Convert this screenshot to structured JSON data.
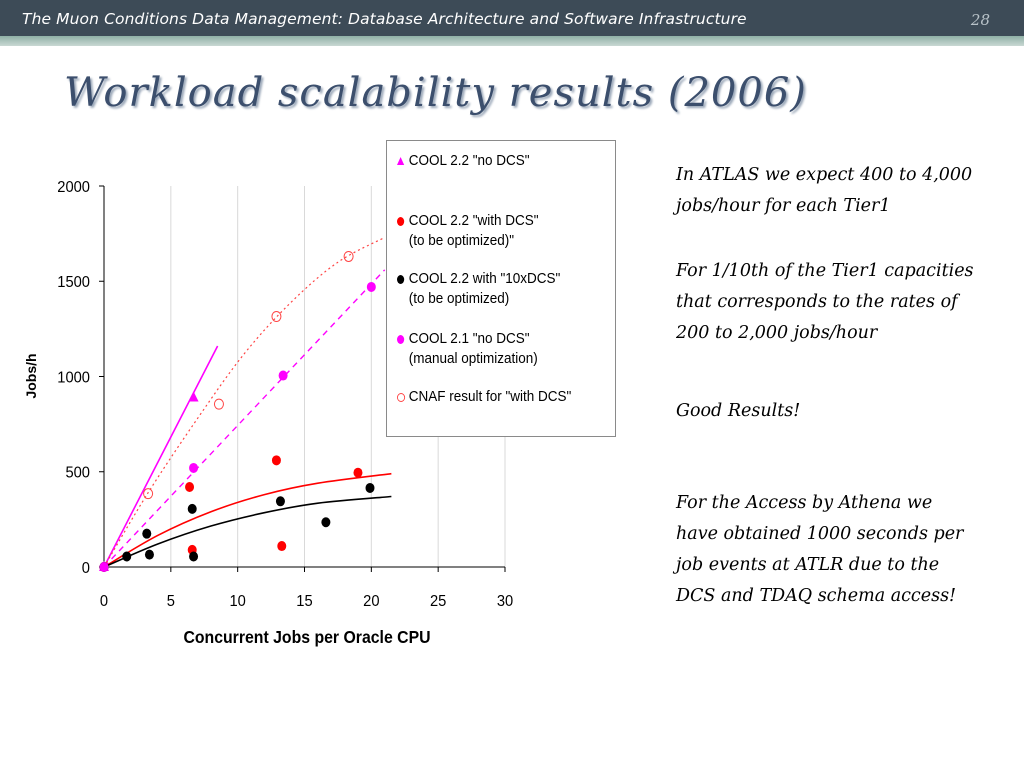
{
  "header": {
    "title": "The Muon Conditions Data Management: Database Architecture and Software Infrastructure",
    "slide_number": "28"
  },
  "slide": {
    "title": "Workload scalability results (2006)"
  },
  "legend": {
    "items": [
      {
        "lines": [
          "COOL 2.2 \"no DCS\""
        ],
        "marker": "triangle",
        "color": "#ff00ff"
      },
      {
        "lines": [
          "COOL 2.2 \"with DCS\"",
          "(to be optimized)\""
        ],
        "marker": "dot",
        "color": "#ff0000"
      },
      {
        "lines": [
          "COOL 2.2 with \"10xDCS\"",
          "(to be optimized)"
        ],
        "marker": "dot",
        "color": "#000000"
      },
      {
        "lines": [
          "COOL 2.1 \"no DCS\"",
          "(manual optimization)"
        ],
        "marker": "dot",
        "color": "#ff00ff"
      },
      {
        "lines": [
          "CNAF result for \"with DCS\""
        ],
        "marker": "open-circle",
        "color": "#ff4444"
      }
    ]
  },
  "notes": [
    "In ATLAS we expect 400 to 4,000 jobs/hour for each Tier1",
    "For 1/10th of the Tier1 capacities  that corresponds to the rates of 200 to 2,000 jobs/hour",
    "Good Results!",
    "For the Access by Athena we have obtained 1000 seconds per job events at ATLR due to the DCS and TDAQ schema access!"
  ],
  "chart_data": {
    "type": "scatter",
    "xlabel": "Concurrent Jobs per Oracle CPU",
    "ylabel": "Jobs/h",
    "xlim": [
      0,
      30
    ],
    "ylim": [
      0,
      2000
    ],
    "xticks": [
      "0",
      "5",
      "10",
      "15",
      "20",
      "25",
      "30"
    ],
    "yticks": [
      "0",
      "500",
      "1000",
      "1500",
      "2000"
    ],
    "grid": "vertical",
    "series": [
      {
        "name": "COOL 2.2 \"no DCS\"",
        "marker": "triangle",
        "color": "#ff00ff",
        "points": [
          [
            0,
            0
          ],
          [
            6.7,
            890
          ]
        ],
        "trend": {
          "type": "line",
          "points": [
            [
              0,
              0
            ],
            [
              8.5,
              1160
            ]
          ],
          "style": "solid"
        }
      },
      {
        "name": "COOL 2.2 \"with DCS\"",
        "marker": "dot",
        "color": "#ff0000",
        "points": [
          [
            0,
            0
          ],
          [
            6.4,
            420
          ],
          [
            6.6,
            90
          ],
          [
            12.9,
            560
          ],
          [
            13.3,
            110
          ],
          [
            19.0,
            495
          ]
        ],
        "trend": {
          "type": "curve",
          "points": [
            [
              0,
              0
            ],
            [
              4,
              165
            ],
            [
              8,
              290
            ],
            [
              12,
              380
            ],
            [
              16,
              440
            ],
            [
              21.5,
              490
            ]
          ],
          "style": "solid"
        }
      },
      {
        "name": "COOL 2.2 with \"10xDCS\"",
        "marker": "dot",
        "color": "#000000",
        "points": [
          [
            0,
            0
          ],
          [
            1.7,
            55
          ],
          [
            3.2,
            175
          ],
          [
            3.4,
            65
          ],
          [
            6.6,
            305
          ],
          [
            6.7,
            55
          ],
          [
            13.2,
            345
          ],
          [
            16.6,
            235
          ],
          [
            19.9,
            415
          ]
        ],
        "trend": {
          "type": "curve",
          "points": [
            [
              0,
              0
            ],
            [
              4,
              120
            ],
            [
              8,
              215
            ],
            [
              12,
              285
            ],
            [
              16,
              335
            ],
            [
              21.5,
              370
            ]
          ],
          "style": "solid"
        }
      },
      {
        "name": "COOL 2.1 \"no DCS\"",
        "marker": "dot",
        "color": "#ff00ff",
        "points": [
          [
            0,
            0
          ],
          [
            6.7,
            520
          ],
          [
            13.4,
            1005
          ],
          [
            20.0,
            1470
          ]
        ],
        "trend": {
          "type": "line",
          "points": [
            [
              0,
              0
            ],
            [
              21,
              1560
            ]
          ],
          "style": "dashed"
        }
      },
      {
        "name": "CNAF result for \"with DCS\"",
        "marker": "open-circle",
        "color": "#ff4444",
        "points": [
          [
            3.3,
            385
          ],
          [
            8.6,
            855
          ],
          [
            12.9,
            1315
          ],
          [
            18.3,
            1630
          ]
        ],
        "trend": {
          "type": "curve",
          "points": [
            [
              0,
              0
            ],
            [
              3.3,
              390
            ],
            [
              7,
              780
            ],
            [
              10.5,
              1120
            ],
            [
              14,
              1390
            ],
            [
              17.5,
              1600
            ],
            [
              21,
              1730
            ]
          ],
          "style": "dotted"
        }
      }
    ]
  }
}
